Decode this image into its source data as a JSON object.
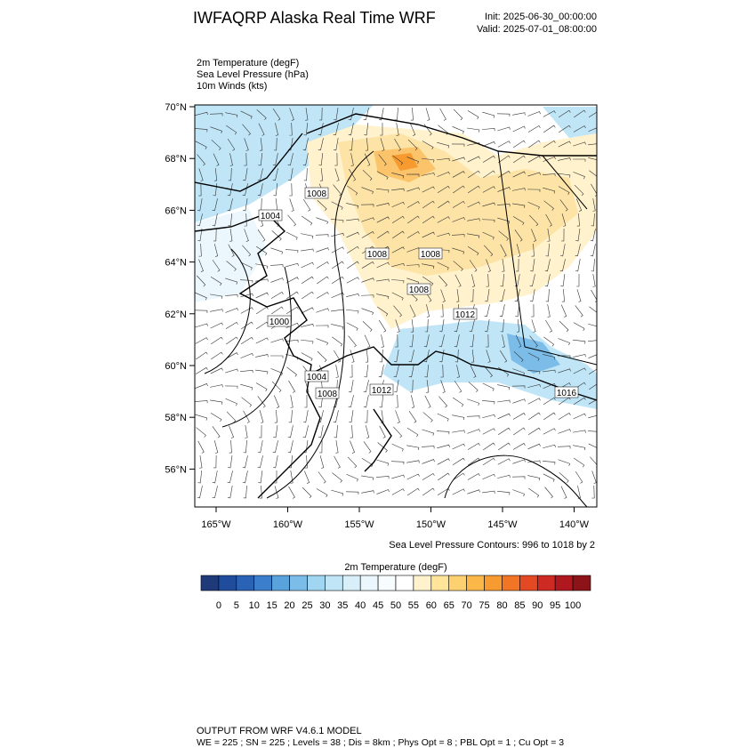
{
  "header": {
    "title": "IWFAQRP Alaska Real Time WRF",
    "init": "Init: 2025-06-30_00:00:00",
    "valid": "Valid: 2025-07-01_08:00:00"
  },
  "fields": [
    "2m Temperature   (degF)",
    "Sea Level Pressure   (hPa)",
    "10m Winds   (kts)"
  ],
  "map": {
    "lat_ticks": [
      {
        "value": 70,
        "label": "70°N"
      },
      {
        "value": 68,
        "label": "68°N"
      },
      {
        "value": 66,
        "label": "66°N"
      },
      {
        "value": 64,
        "label": "64°N"
      },
      {
        "value": 62,
        "label": "62°N"
      },
      {
        "value": 60,
        "label": "60°N"
      },
      {
        "value": 58,
        "label": "58°N"
      },
      {
        "value": 56,
        "label": "56°N"
      }
    ],
    "lon_ticks": [
      {
        "value": -165,
        "label": "165°W"
      },
      {
        "value": -160,
        "label": "160°W"
      },
      {
        "value": -155,
        "label": "155°W"
      },
      {
        "value": -150,
        "label": "150°W"
      },
      {
        "value": -145,
        "label": "145°W"
      },
      {
        "value": -140,
        "label": "140°W"
      }
    ],
    "contour_labels": [
      1008,
      1004,
      1008,
      1008,
      1008,
      1012,
      1000,
      1004,
      1008,
      1012,
      1016
    ],
    "contour_note": "Sea Level Pressure Contours: 996 to 1018 by 2"
  },
  "colorbar": {
    "title": "2m Temperature  (degF)",
    "ticks": [
      0,
      5,
      10,
      15,
      20,
      25,
      30,
      35,
      40,
      45,
      50,
      55,
      60,
      65,
      70,
      75,
      80,
      85,
      90,
      95,
      100
    ],
    "colors": [
      "#1f3a78",
      "#1f4d9c",
      "#2a62b5",
      "#3b7fcc",
      "#5aa2dc",
      "#7bbce8",
      "#a1d6f3",
      "#bfe5f7",
      "#d8eff9",
      "#ebf7fc",
      "#f7fcfe",
      "#ffffff",
      "#fff2cc",
      "#ffe49a",
      "#fdd070",
      "#fbb848",
      "#f79a30",
      "#f27526",
      "#e34a23",
      "#cc2a22",
      "#b0181f",
      "#8c1418"
    ]
  },
  "footer": {
    "model": "OUTPUT FROM WRF V4.6.1 MODEL",
    "settings": "WE = 225 ; SN = 225 ; Levels = 38 ; Dis = 8km ; Phys Opt = 8 ; PBL Opt = 1 ; Cu Opt = 3"
  }
}
